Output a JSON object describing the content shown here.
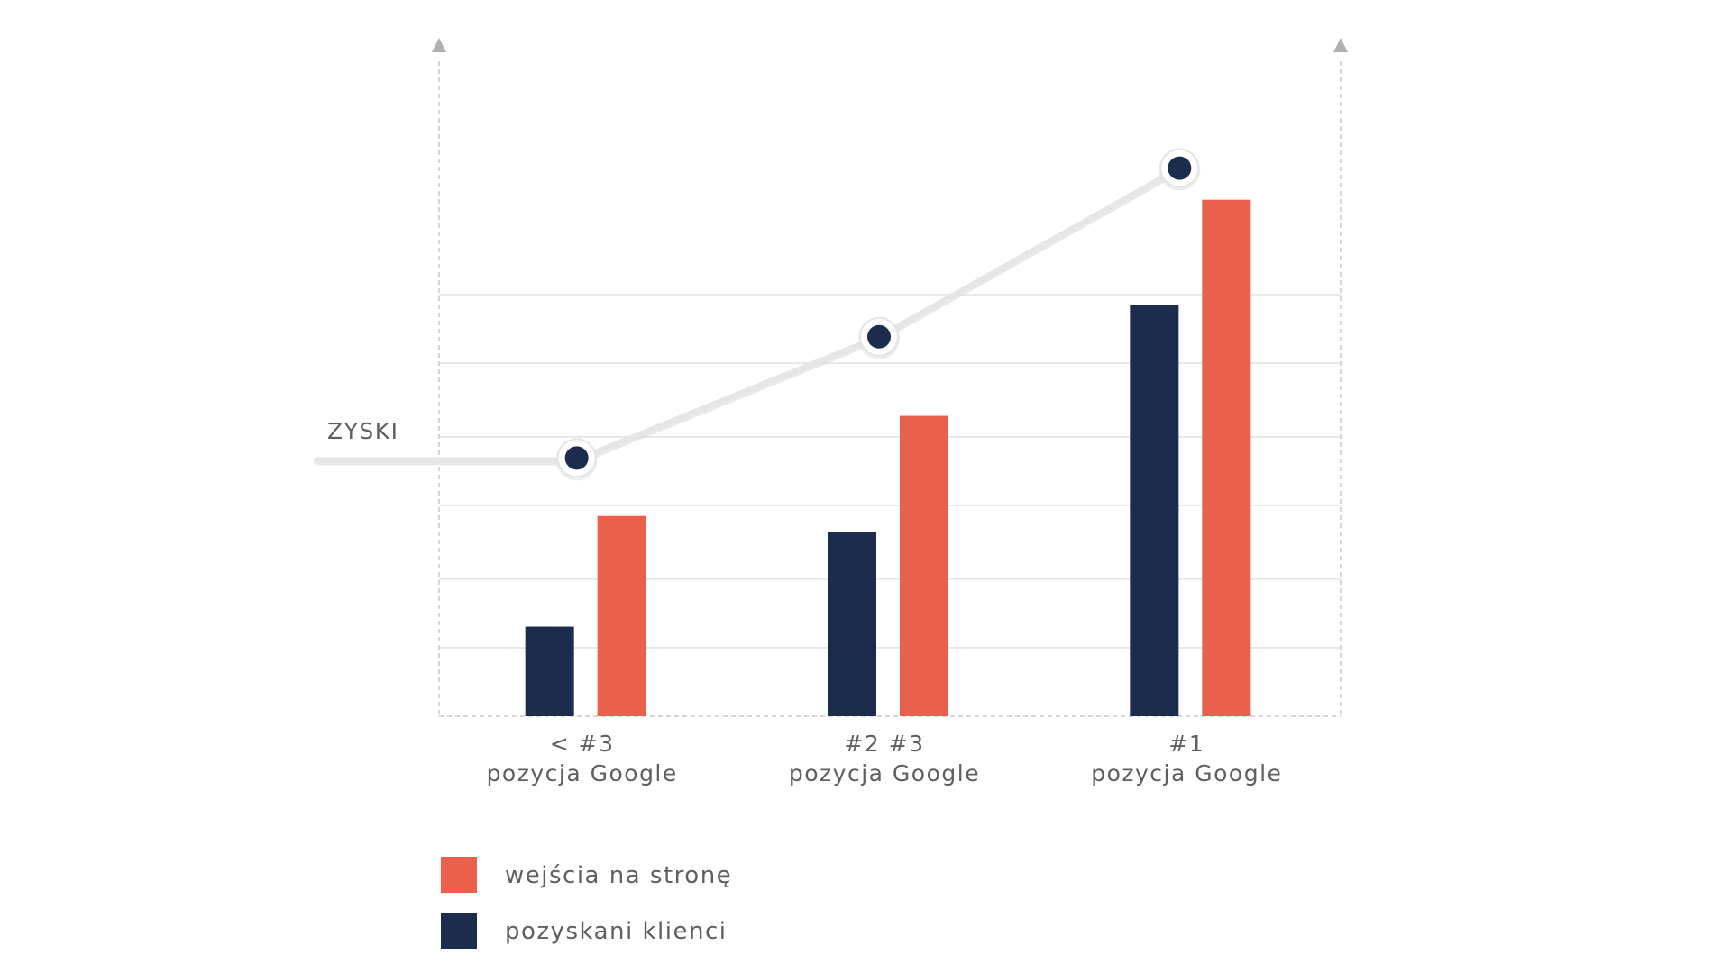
{
  "chart_data": {
    "type": "bar",
    "categories": [
      [
        "< #3",
        "pozycja Google"
      ],
      [
        "#2 #3",
        "pozycja Google"
      ],
      [
        "#1",
        "pozycja Google"
      ]
    ],
    "series": [
      {
        "name": "pozyskani klienci",
        "values": [
          1.7,
          3.5,
          7.8
        ],
        "color": "#1b2c4d"
      },
      {
        "name": "wejścia na stronę",
        "values": [
          3.8,
          5.7,
          9.8
        ],
        "color": "#eb604d"
      }
    ],
    "line_series": {
      "name": "ZYSKI",
      "values": [
        4.9,
        7.2,
        10.4
      ],
      "color": "#e6e6e6",
      "marker_color": "#1b2c4d"
    },
    "ylim": [
      0,
      12
    ],
    "grid": true,
    "legend": {
      "position": "bottom-left",
      "items": [
        {
          "label": "wejścia na stronę",
          "color": "#eb604d"
        },
        {
          "label": "pozyskani klienci",
          "color": "#1b2c4d"
        }
      ]
    }
  }
}
